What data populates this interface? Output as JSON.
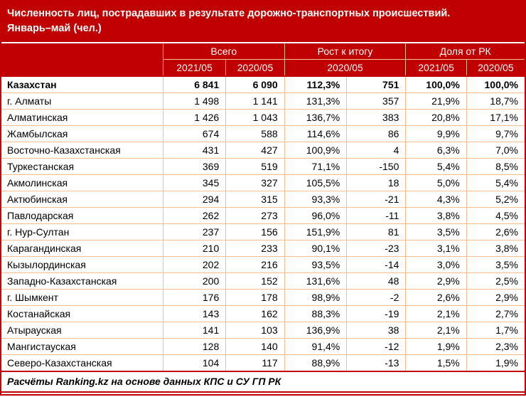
{
  "title": {
    "line1": "Численность лиц, пострадавших в результате дорожно-транспортных происшествий.",
    "line2": "Январь–май (чел.)"
  },
  "colors": {
    "header_bg": "#C00000",
    "border_peach": "#F5BD92",
    "header_text": "#FFFFFF",
    "body_text": "#000000"
  },
  "footer": {
    "text": "Расчёты Ranking.kz на основе данных КПС и СУ ГП РК"
  },
  "chart_data": {
    "type": "table",
    "title": "Численность лиц, пострадавших в результате дорожно-транспортных происшествий. Январь–май (чел.)",
    "column_groups": [
      {
        "label": "Всего",
        "span": 2
      },
      {
        "label": "Рост к итогу",
        "span": 2
      },
      {
        "label": "Доля от РК",
        "span": 2
      }
    ],
    "sub_headers": [
      {
        "label": "2021/05",
        "span": 1
      },
      {
        "label": "2020/05",
        "span": 1
      },
      {
        "label": "2020/05",
        "span": 2
      },
      {
        "label": "2021/05",
        "span": 1
      },
      {
        "label": "2020/05",
        "span": 1
      }
    ],
    "rows": [
      {
        "name": "Казахстан",
        "values": [
          "6 841",
          "6 090",
          "112,3%",
          "751",
          "100,0%",
          "100,0%"
        ],
        "bold": true
      },
      {
        "name": "г. Алматы",
        "values": [
          "1 498",
          "1 141",
          "131,3%",
          "357",
          "21,9%",
          "18,7%"
        ],
        "bold": false
      },
      {
        "name": "Алматинская",
        "values": [
          "1 426",
          "1 043",
          "136,7%",
          "383",
          "20,8%",
          "17,1%"
        ],
        "bold": false
      },
      {
        "name": "Жамбылская",
        "values": [
          "674",
          "588",
          "114,6%",
          "86",
          "9,9%",
          "9,7%"
        ],
        "bold": false
      },
      {
        "name": "Восточно-Казахстанская",
        "values": [
          "431",
          "427",
          "100,9%",
          "4",
          "6,3%",
          "7,0%"
        ],
        "bold": false
      },
      {
        "name": "Туркестанская",
        "values": [
          "369",
          "519",
          "71,1%",
          "-150",
          "5,4%",
          "8,5%"
        ],
        "bold": false
      },
      {
        "name": "Акмолинская",
        "values": [
          "345",
          "327",
          "105,5%",
          "18",
          "5,0%",
          "5,4%"
        ],
        "bold": false
      },
      {
        "name": "Актюбинская",
        "values": [
          "294",
          "315",
          "93,3%",
          "-21",
          "4,3%",
          "5,2%"
        ],
        "bold": false
      },
      {
        "name": "Павлодарская",
        "values": [
          "262",
          "273",
          "96,0%",
          "-11",
          "3,8%",
          "4,5%"
        ],
        "bold": false
      },
      {
        "name": "г. Нур-Султан",
        "values": [
          "237",
          "156",
          "151,9%",
          "81",
          "3,5%",
          "2,6%"
        ],
        "bold": false
      },
      {
        "name": "Карагандинская",
        "values": [
          "210",
          "233",
          "90,1%",
          "-23",
          "3,1%",
          "3,8%"
        ],
        "bold": false
      },
      {
        "name": "Кызылординская",
        "values": [
          "202",
          "216",
          "93,5%",
          "-14",
          "3,0%",
          "3,5%"
        ],
        "bold": false
      },
      {
        "name": "Западно-Казахстанская",
        "values": [
          "200",
          "152",
          "131,6%",
          "48",
          "2,9%",
          "2,5%"
        ],
        "bold": false
      },
      {
        "name": "г. Шымкент",
        "values": [
          "176",
          "178",
          "98,9%",
          "-2",
          "2,6%",
          "2,9%"
        ],
        "bold": false
      },
      {
        "name": "Костанайская",
        "values": [
          "143",
          "162",
          "88,3%",
          "-19",
          "2,1%",
          "2,7%"
        ],
        "bold": false
      },
      {
        "name": "Атырауская",
        "values": [
          "141",
          "103",
          "136,9%",
          "38",
          "2,1%",
          "1,7%"
        ],
        "bold": false
      },
      {
        "name": "Мангистауская",
        "values": [
          "128",
          "140",
          "91,4%",
          "-12",
          "1,9%",
          "2,3%"
        ],
        "bold": false
      },
      {
        "name": "Северо-Казахстанская",
        "values": [
          "104",
          "117",
          "88,9%",
          "-13",
          "1,5%",
          "1,9%"
        ],
        "bold": false
      }
    ]
  }
}
